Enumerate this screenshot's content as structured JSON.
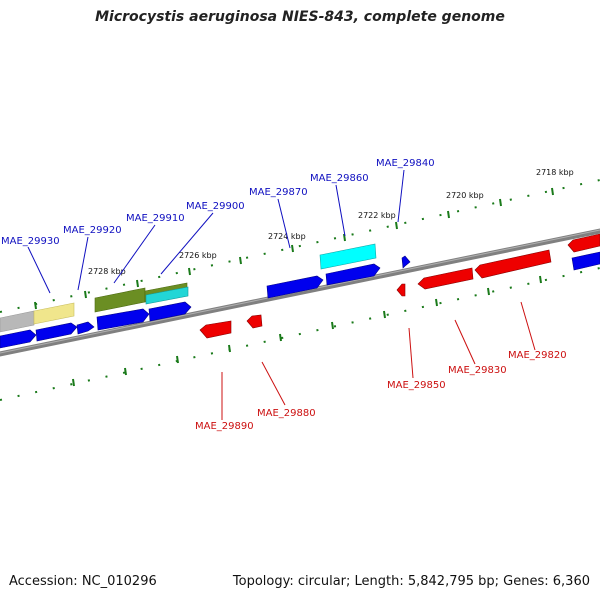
{
  "title": "Microcystis aeruginosa NIES-843, complete genome",
  "footer": {
    "accession": "Accession: NC_010296",
    "topology": "Topology: circular; Length: 5,842,795 bp; Genes: 6,360"
  },
  "colors": {
    "backbone": "#808080",
    "tick": "#1a7a1a",
    "forward_gene": "#0000ee",
    "reverse_gene": "#ee0000",
    "forward_label": "#1010c0",
    "reverse_label": "#cc1010"
  },
  "ticks": [
    {
      "label": "2718 kbp"
    },
    {
      "label": "2720 kbp"
    },
    {
      "label": "2722 kbp"
    },
    {
      "label": "2724 kbp"
    },
    {
      "label": "2726 kbp"
    },
    {
      "label": "2728 kbp"
    }
  ],
  "forward_genes": [
    {
      "label": "MAE_29840"
    },
    {
      "label": "MAE_29860"
    },
    {
      "label": "MAE_29870"
    },
    {
      "label": "MAE_29900"
    },
    {
      "label": "MAE_29910"
    },
    {
      "label": "MAE_29920"
    },
    {
      "label": "MAE_29930"
    }
  ],
  "reverse_genes": [
    {
      "label": "MAE_29820"
    },
    {
      "label": "MAE_29830"
    },
    {
      "label": "MAE_29850"
    },
    {
      "label": "MAE_29880"
    },
    {
      "label": "MAE_29890"
    }
  ]
}
